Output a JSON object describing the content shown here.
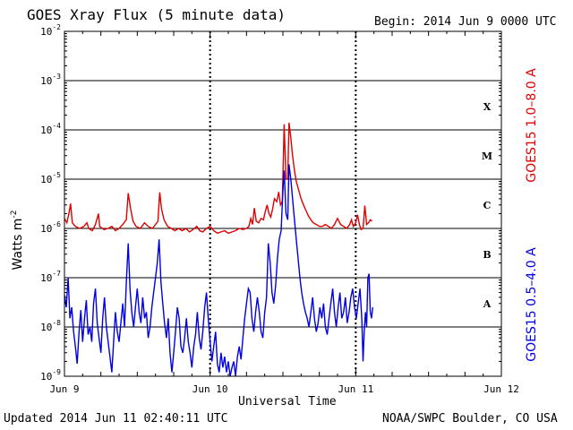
{
  "header": {
    "title": "GOES Xray Flux (5 minute data)",
    "begin": "Begin:  2014 Jun 9 0000 UTC"
  },
  "footer": {
    "updated": "Updated 2014 Jun 11 02:40:11 UTC",
    "credit": "NOAA/SWPC Boulder, CO USA"
  },
  "chart_data": {
    "type": "line",
    "title": "GOES Xray Flux (5 minute data)",
    "xlabel": "Universal Time",
    "ylabel_base": "Watts m",
    "ylabel_exp": "-2",
    "y_scale": "log",
    "ylim": [
      1e-09,
      0.01
    ],
    "y_ticks": [
      {
        "base": "10",
        "exp": "-9",
        "value": 1e-09
      },
      {
        "base": "10",
        "exp": "-8",
        "value": 1e-08
      },
      {
        "base": "10",
        "exp": "-7",
        "value": 1e-07
      },
      {
        "base": "10",
        "exp": "-6",
        "value": 1e-06
      },
      {
        "base": "10",
        "exp": "-5",
        "value": 1e-05
      },
      {
        "base": "10",
        "exp": "-4",
        "value": 0.0001
      },
      {
        "base": "10",
        "exp": "-3",
        "value": 0.001
      },
      {
        "base": "10",
        "exp": "-2",
        "value": 0.01
      }
    ],
    "x_unit": "hours since 2014 Jun 9 0000 UTC",
    "xlim": [
      0,
      72
    ],
    "x_ticks": [
      {
        "label": "Jun 9",
        "value": 0
      },
      {
        "label": "Jun 10",
        "value": 24
      },
      {
        "label": "Jun 11",
        "value": 48
      },
      {
        "label": "Jun 12",
        "value": 72
      }
    ],
    "flare_classes": [
      {
        "label": "A",
        "value": 3e-08
      },
      {
        "label": "B",
        "value": 3e-07
      },
      {
        "label": "C",
        "value": 3e-06
      },
      {
        "label": "M",
        "value": 3e-05
      },
      {
        "label": "X",
        "value": 0.0003
      }
    ],
    "grid": "horizontal at decades, dotted vertical at day boundaries",
    "series": [
      {
        "name": "GOES15 1.0–8.0 A",
        "color": "#e00000",
        "points": [
          [
            0,
            1.6e-06
          ],
          [
            0.4,
            1.3e-06
          ],
          [
            0.8,
            2.2e-06
          ],
          [
            1.0,
            3.2e-06
          ],
          [
            1.3,
            1.3e-06
          ],
          [
            1.8,
            1.1e-06
          ],
          [
            2.5,
            1e-06
          ],
          [
            3.2,
            1.1e-06
          ],
          [
            3.7,
            1.3e-06
          ],
          [
            4.0,
            1e-06
          ],
          [
            4.6,
            9e-07
          ],
          [
            5.1,
            1.2e-06
          ],
          [
            5.6,
            2e-06
          ],
          [
            5.8,
            1.1e-06
          ],
          [
            6.5,
            9.5e-07
          ],
          [
            7.2,
            1e-06
          ],
          [
            7.8,
            1.1e-06
          ],
          [
            8.4,
            9e-07
          ],
          [
            9.0,
            1e-06
          ],
          [
            9.6,
            1.2e-06
          ],
          [
            10.2,
            1.5e-06
          ],
          [
            10.5,
            5.2e-06
          ],
          [
            10.9,
            2.5e-06
          ],
          [
            11.3,
            1.4e-06
          ],
          [
            11.8,
            1.1e-06
          ],
          [
            12.5,
            1e-06
          ],
          [
            13.2,
            1.3e-06
          ],
          [
            13.8,
            1.1e-06
          ],
          [
            14.5,
            1e-06
          ],
          [
            15.0,
            1.2e-06
          ],
          [
            15.4,
            1.4e-06
          ],
          [
            15.7,
            5.4e-06
          ],
          [
            16.0,
            2.5e-06
          ],
          [
            16.4,
            1.5e-06
          ],
          [
            17.0,
            1.1e-06
          ],
          [
            17.6,
            1e-06
          ],
          [
            18.2,
            9e-07
          ],
          [
            18.8,
            1e-06
          ],
          [
            19.4,
            9e-07
          ],
          [
            20.0,
            1e-06
          ],
          [
            20.6,
            8.5e-07
          ],
          [
            21.2,
            9.5e-07
          ],
          [
            21.8,
            1.1e-06
          ],
          [
            22.3,
            9e-07
          ],
          [
            22.8,
            8.5e-07
          ],
          [
            23.4,
            1e-06
          ],
          [
            24.0,
            1.1e-06
          ],
          [
            24.6,
            9e-07
          ],
          [
            25.2,
            8e-07
          ],
          [
            25.8,
            8.5e-07
          ],
          [
            26.4,
            9e-07
          ],
          [
            27.0,
            8e-07
          ],
          [
            27.6,
            8.5e-07
          ],
          [
            28.2,
            9e-07
          ],
          [
            28.8,
            1e-06
          ],
          [
            29.4,
            9.5e-07
          ],
          [
            30.0,
            1e-06
          ],
          [
            30.4,
            1.1e-06
          ],
          [
            30.7,
            1.6e-06
          ],
          [
            31.0,
            1.2e-06
          ],
          [
            31.3,
            2.6e-06
          ],
          [
            31.6,
            1.4e-06
          ],
          [
            32.0,
            1.3e-06
          ],
          [
            32.4,
            1.6e-06
          ],
          [
            32.8,
            1.5e-06
          ],
          [
            33.1,
            2.2e-06
          ],
          [
            33.4,
            3e-06
          ],
          [
            33.7,
            2e-06
          ],
          [
            34.0,
            1.7e-06
          ],
          [
            34.3,
            2.5e-06
          ],
          [
            34.6,
            4e-06
          ],
          [
            35.0,
            3.5e-06
          ],
          [
            35.3,
            5.5e-06
          ],
          [
            35.6,
            3e-06
          ],
          [
            35.9,
            3.5e-06
          ],
          [
            36.2,
            0.00013
          ],
          [
            36.5,
            1e-05
          ],
          [
            36.8,
            1e-05
          ],
          [
            37.0,
            0.00014
          ],
          [
            37.3,
            7e-05
          ],
          [
            37.6,
            3e-05
          ],
          [
            37.9,
            1.5e-05
          ],
          [
            38.2,
            9e-06
          ],
          [
            38.6,
            6e-06
          ],
          [
            39.0,
            4e-06
          ],
          [
            39.4,
            3e-06
          ],
          [
            39.8,
            2.3e-06
          ],
          [
            40.2,
            1.8e-06
          ],
          [
            40.6,
            1.5e-06
          ],
          [
            41.0,
            1.3e-06
          ],
          [
            41.5,
            1.2e-06
          ],
          [
            42.0,
            1.1e-06
          ],
          [
            42.5,
            1.1e-06
          ],
          [
            43.0,
            1.2e-06
          ],
          [
            43.5,
            1.1e-06
          ],
          [
            44.0,
            1e-06
          ],
          [
            44.5,
            1.2e-06
          ],
          [
            45.0,
            1.6e-06
          ],
          [
            45.5,
            1.2e-06
          ],
          [
            46.0,
            1.1e-06
          ],
          [
            46.5,
            1e-06
          ],
          [
            47.0,
            1.2e-06
          ],
          [
            47.3,
            1.5e-06
          ],
          [
            47.6,
            1.1e-06
          ],
          [
            48.0,
            1.3e-06
          ],
          [
            48.3,
            1.9e-06
          ],
          [
            48.6,
            1.2e-06
          ],
          [
            48.9,
            9.5e-07
          ],
          [
            49.2,
            1e-06
          ],
          [
            49.5,
            2.9e-06
          ],
          [
            49.8,
            1.2e-06
          ],
          [
            50.1,
            1.3e-06
          ],
          [
            50.4,
            1.5e-06
          ],
          [
            50.7,
            1.4e-06
          ]
        ]
      },
      {
        "name": "GOES15 0.5–4.0 A",
        "color": "#0000e0",
        "points": [
          [
            0,
            4.5e-08
          ],
          [
            0.3,
            2.5e-08
          ],
          [
            0.6,
            1e-07
          ],
          [
            0.9,
            1.5e-08
          ],
          [
            1.2,
            2.5e-08
          ],
          [
            1.5,
            8e-09
          ],
          [
            1.8,
            4e-09
          ],
          [
            2.1,
            1.8e-09
          ],
          [
            2.4,
            8e-09
          ],
          [
            2.7,
            2.2e-08
          ],
          [
            3.0,
            5e-09
          ],
          [
            3.3,
            1.5e-08
          ],
          [
            3.6,
            3.5e-08
          ],
          [
            3.9,
            7e-09
          ],
          [
            4.2,
            1e-08
          ],
          [
            4.5,
            5e-09
          ],
          [
            4.8,
            3e-08
          ],
          [
            5.1,
            6e-08
          ],
          [
            5.4,
            1.2e-08
          ],
          [
            5.7,
            6e-09
          ],
          [
            6.0,
            3e-09
          ],
          [
            6.3,
            1.5e-08
          ],
          [
            6.6,
            4e-08
          ],
          [
            6.9,
            1e-08
          ],
          [
            7.2,
            5e-09
          ],
          [
            7.5,
            2.5e-09
          ],
          [
            7.8,
            1.2e-09
          ],
          [
            8.1,
            5e-09
          ],
          [
            8.4,
            2e-08
          ],
          [
            8.7,
            8e-09
          ],
          [
            9.0,
            5e-09
          ],
          [
            9.3,
            1.2e-08
          ],
          [
            9.6,
            3e-08
          ],
          [
            9.9,
            1e-08
          ],
          [
            10.2,
            8e-08
          ],
          [
            10.5,
            5e-07
          ],
          [
            10.8,
            6e-08
          ],
          [
            11.1,
            2e-08
          ],
          [
            11.4,
            1e-08
          ],
          [
            11.7,
            2.5e-08
          ],
          [
            12.0,
            6e-08
          ],
          [
            12.3,
            2e-08
          ],
          [
            12.6,
            1.2e-08
          ],
          [
            12.9,
            4e-08
          ],
          [
            13.2,
            1.5e-08
          ],
          [
            13.5,
            2e-08
          ],
          [
            13.8,
            6e-09
          ],
          [
            14.1,
            1e-08
          ],
          [
            14.4,
            2.5e-08
          ],
          [
            14.7,
            5e-08
          ],
          [
            15.0,
            1e-07
          ],
          [
            15.3,
            2e-07
          ],
          [
            15.6,
            6e-07
          ],
          [
            15.9,
            8e-08
          ],
          [
            16.2,
            3e-08
          ],
          [
            16.5,
            1.2e-08
          ],
          [
            16.8,
            6e-09
          ],
          [
            17.1,
            1.5e-08
          ],
          [
            17.4,
            3e-09
          ],
          [
            17.7,
            1.2e-09
          ],
          [
            18.0,
            3e-09
          ],
          [
            18.3,
            8e-09
          ],
          [
            18.6,
            2.5e-08
          ],
          [
            18.9,
            1.5e-08
          ],
          [
            19.2,
            4e-09
          ],
          [
            19.5,
            3e-09
          ],
          [
            19.8,
            6e-09
          ],
          [
            20.1,
            1.5e-08
          ],
          [
            20.4,
            5e-09
          ],
          [
            20.7,
            3e-09
          ],
          [
            21.0,
            1.5e-09
          ],
          [
            21.3,
            4e-09
          ],
          [
            21.6,
            7e-09
          ],
          [
            21.9,
            2e-08
          ],
          [
            22.2,
            6e-09
          ],
          [
            22.5,
            3.5e-09
          ],
          [
            22.8,
            8e-09
          ],
          [
            23.1,
            2.5e-08
          ],
          [
            23.4,
            5e-08
          ],
          [
            23.7,
            1.5e-08
          ],
          [
            24.0,
            5e-09
          ],
          [
            24.3,
            2e-09
          ],
          [
            24.6,
            4e-09
          ],
          [
            24.9,
            8e-09
          ],
          [
            25.2,
            1.8e-09
          ],
          [
            25.5,
            1.2e-09
          ],
          [
            25.8,
            3e-09
          ],
          [
            26.1,
            1.5e-09
          ],
          [
            26.4,
            2.5e-09
          ],
          [
            26.7,
            1.2e-09
          ],
          [
            27.0,
            2e-09
          ],
          [
            27.3,
            1e-09
          ],
          [
            27.6,
            1.5e-09
          ],
          [
            27.9,
            2e-09
          ],
          [
            28.2,
            1e-09
          ],
          [
            28.5,
            2.5e-09
          ],
          [
            28.8,
            4e-09
          ],
          [
            29.1,
            2.2e-09
          ],
          [
            29.4,
            6e-09
          ],
          [
            29.7,
            1.5e-08
          ],
          [
            30.0,
            3e-08
          ],
          [
            30.3,
            6e-08
          ],
          [
            30.6,
            5e-08
          ],
          [
            30.9,
            1.5e-08
          ],
          [
            31.2,
            8e-09
          ],
          [
            31.5,
            2e-08
          ],
          [
            31.8,
            4e-08
          ],
          [
            32.1,
            2e-08
          ],
          [
            32.4,
            8e-09
          ],
          [
            32.7,
            6e-09
          ],
          [
            33.0,
            2e-08
          ],
          [
            33.3,
            4e-08
          ],
          [
            33.6,
            5e-07
          ],
          [
            33.9,
            2e-07
          ],
          [
            34.2,
            5e-08
          ],
          [
            34.5,
            3e-08
          ],
          [
            34.8,
            7e-08
          ],
          [
            35.1,
            2.5e-07
          ],
          [
            35.4,
            6e-07
          ],
          [
            35.7,
            9e-07
          ],
          [
            36.0,
            6e-06
          ],
          [
            36.2,
            1.5e-05
          ],
          [
            36.5,
            2e-06
          ],
          [
            36.8,
            1.5e-06
          ],
          [
            37.0,
            2e-05
          ],
          [
            37.3,
            1e-05
          ],
          [
            37.6,
            4e-06
          ],
          [
            37.9,
            1.5e-06
          ],
          [
            38.2,
            6e-07
          ],
          [
            38.5,
            2.5e-07
          ],
          [
            38.8,
            1e-07
          ],
          [
            39.1,
            5e-08
          ],
          [
            39.4,
            3e-08
          ],
          [
            39.7,
            2e-08
          ],
          [
            40.0,
            1.5e-08
          ],
          [
            40.3,
            1e-08
          ],
          [
            40.6,
            2e-08
          ],
          [
            40.9,
            4e-08
          ],
          [
            41.2,
            1.5e-08
          ],
          [
            41.5,
            8e-09
          ],
          [
            41.8,
            1.2e-08
          ],
          [
            42.1,
            2.5e-08
          ],
          [
            42.4,
            1.5e-08
          ],
          [
            42.7,
            3e-08
          ],
          [
            43.0,
            1e-08
          ],
          [
            43.3,
            7e-09
          ],
          [
            43.6,
            1.5e-08
          ],
          [
            43.9,
            3e-08
          ],
          [
            44.2,
            6e-08
          ],
          [
            44.5,
            2e-08
          ],
          [
            44.8,
            1e-08
          ],
          [
            45.1,
            2.5e-08
          ],
          [
            45.4,
            5e-08
          ],
          [
            45.7,
            1.5e-08
          ],
          [
            46.0,
            2e-08
          ],
          [
            46.3,
            4e-08
          ],
          [
            46.6,
            1.2e-08
          ],
          [
            46.9,
            2e-08
          ],
          [
            47.2,
            4e-08
          ],
          [
            47.5,
            6e-08
          ],
          [
            47.8,
            2.5e-08
          ],
          [
            48.1,
            1.5e-08
          ],
          [
            48.4,
            3e-08
          ],
          [
            48.7,
            6e-08
          ],
          [
            49.0,
            1.5e-08
          ],
          [
            49.2,
            2e-09
          ],
          [
            49.4,
            8e-09
          ],
          [
            49.6,
            2e-08
          ],
          [
            49.8,
            1e-08
          ],
          [
            50.0,
            1e-07
          ],
          [
            50.2,
            1.2e-07
          ],
          [
            50.4,
            2e-08
          ],
          [
            50.6,
            1.5e-08
          ],
          [
            50.8,
            2.5e-08
          ]
        ]
      }
    ]
  }
}
